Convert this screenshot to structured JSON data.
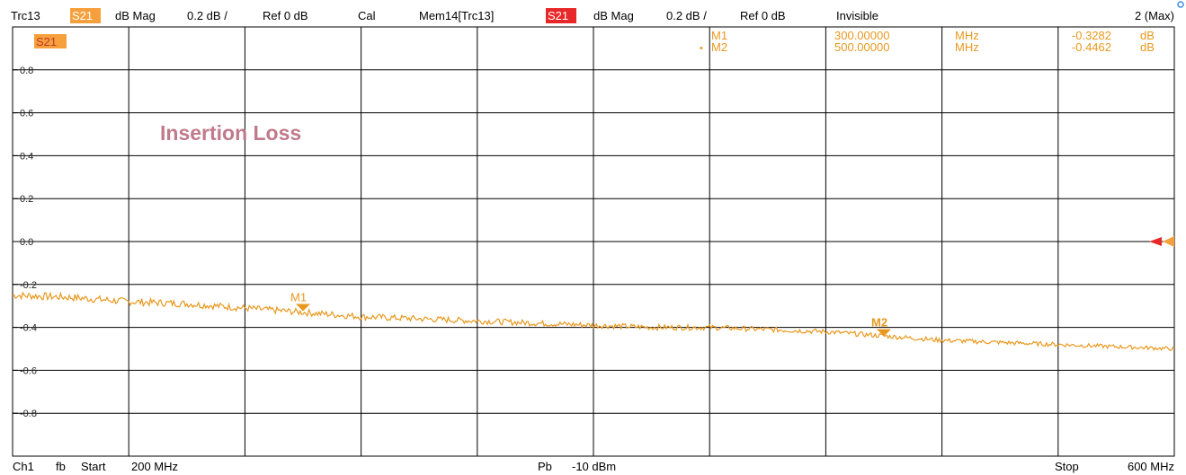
{
  "header": {
    "trace": "Trc13",
    "param": "S21",
    "format": "dB Mag",
    "scale": "0.2 dB /",
    "ref": "Ref 0 dB",
    "cal": "Cal",
    "mem_trace": "Mem14[Trc13]",
    "mem_param": "S21",
    "mem_format": "dB Mag",
    "mem_scale": "0.2 dB /",
    "mem_ref": "Ref 0 dB",
    "mem_state": "Invisible",
    "max_label": "2 (Max)"
  },
  "footer": {
    "channel": "Ch1",
    "fb": "fb",
    "start_label": "Start",
    "start_value": "200 MHz",
    "power_label": "Pb",
    "power_value": "-10 dBm",
    "stop_label": "Stop",
    "stop_value": "600 MHz"
  },
  "colors": {
    "trace": "#e8981e",
    "badge_orange": "#f5a03c",
    "badge_red": "#e82828",
    "grid": "#000000",
    "annotation": "#c07a8c",
    "ref_marker": "#e82828"
  },
  "chart_data": {
    "type": "line",
    "trace_label": "S21",
    "annotation": "Insertion Loss",
    "xlim": [
      200,
      600
    ],
    "ylim": [
      -1.0,
      1.0
    ],
    "x_unit": "MHz",
    "y_unit": "dB",
    "y_ticks": [
      {
        "value": 0.8,
        "label": "0.8"
      },
      {
        "value": 0.6,
        "label": "0.6"
      },
      {
        "value": 0.4,
        "label": "0.4"
      },
      {
        "value": 0.2,
        "label": "0.2"
      },
      {
        "value": 0.0,
        "label": "0.0"
      },
      {
        "value": -0.2,
        "label": "-0.2"
      },
      {
        "value": -0.4,
        "label": "-0.4"
      },
      {
        "value": -0.6,
        "label": "-0.6"
      },
      {
        "value": -0.8,
        "label": "-0.8"
      }
    ],
    "x_divisions": 10,
    "y_divisions": 10,
    "grid": true,
    "series": [
      {
        "x": [
          200,
          220,
          240,
          260,
          280,
          300,
          320,
          340,
          360,
          380,
          400,
          420,
          440,
          460,
          480,
          500,
          520,
          540,
          560,
          580,
          600
        ],
        "values": [
          -0.25,
          -0.26,
          -0.28,
          -0.29,
          -0.31,
          -0.33,
          -0.35,
          -0.36,
          -0.37,
          -0.38,
          -0.39,
          -0.4,
          -0.4,
          -0.41,
          -0.42,
          -0.44,
          -0.46,
          -0.47,
          -0.48,
          -0.49,
          -0.5
        ]
      }
    ],
    "markers": [
      {
        "name": "M1",
        "x": 300,
        "y": -0.3282,
        "freq": "300.00000",
        "freq_unit": "MHz",
        "value": "-0.3282",
        "value_unit": "dB"
      },
      {
        "name": "M2",
        "x": 500,
        "y": -0.4462,
        "freq": "500.00000",
        "freq_unit": "MHz",
        "value": "-0.4462",
        "value_unit": "dB"
      }
    ]
  }
}
